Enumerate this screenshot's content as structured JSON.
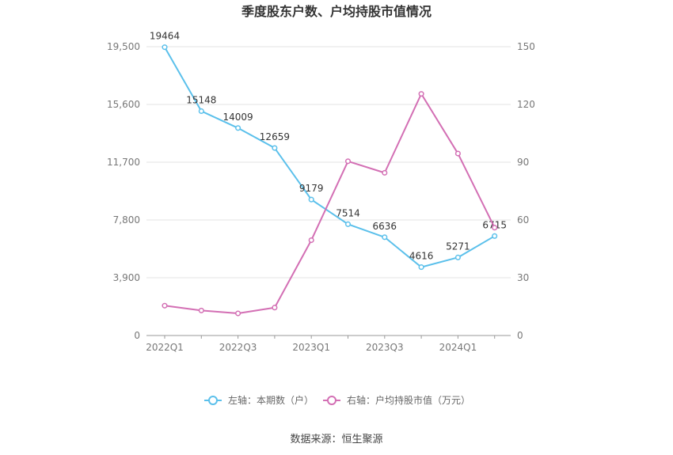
{
  "chart_data": {
    "type": "line",
    "title": "季度股东户数、户均持股市值情况",
    "x": [
      "2022Q1",
      "2022Q2",
      "2022Q3",
      "2022Q4",
      "2023Q1",
      "2023Q2",
      "2023Q3",
      "2023Q4",
      "2024Q1",
      "2024Q2"
    ],
    "x_tick_labels": [
      "2022Q1",
      "2022Q3",
      "2023Q1",
      "2023Q3",
      "2024Q1"
    ],
    "y_left": {
      "ticks": [
        "0",
        "3,900",
        "7,800",
        "11,700",
        "15,600",
        "19,500"
      ],
      "lim": [
        0,
        19500
      ]
    },
    "y_right": {
      "ticks": [
        "0",
        "30",
        "60",
        "90",
        "120",
        "150"
      ],
      "lim": [
        0,
        150
      ]
    },
    "series": [
      {
        "name": "左轴：本期数（户）",
        "axis": "left",
        "color": "#5bc0eb",
        "values": [
          19464,
          15148,
          14009,
          12659,
          9179,
          7514,
          6636,
          4616,
          5271,
          6715
        ],
        "labels": [
          "19464",
          "15148",
          "14009",
          "12659",
          "9179",
          "7514",
          "6636",
          "4616",
          "5271",
          "6715"
        ]
      },
      {
        "name": "右轴：户均持股市值（万元）",
        "axis": "right",
        "color": "#d36fb4",
        "values": [
          15.5,
          13.0,
          11.5,
          14.5,
          49.5,
          90.5,
          84.5,
          125.5,
          94.5,
          56.0
        ]
      }
    ],
    "grid": true,
    "legend_position": "bottom-center"
  },
  "source_text": "数据来源：恒生聚源"
}
